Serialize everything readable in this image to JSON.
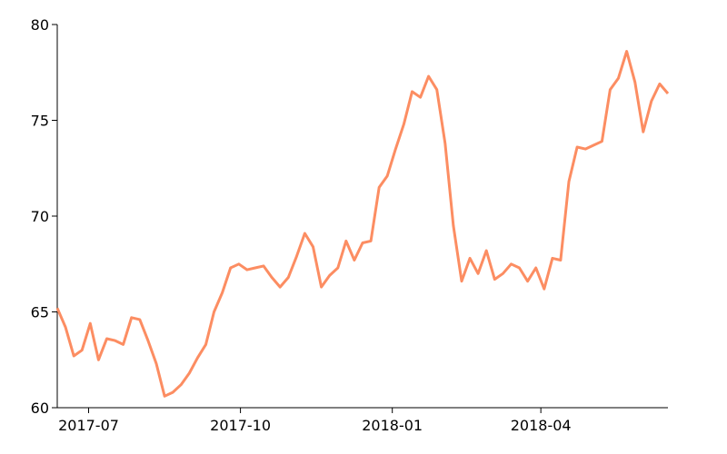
{
  "chart_data": {
    "type": "line",
    "x": [
      "2017-06-12",
      "2017-06-17",
      "2017-06-22",
      "2017-06-27",
      "2017-07-02",
      "2017-07-07",
      "2017-07-12",
      "2017-07-17",
      "2017-07-22",
      "2017-07-27",
      "2017-08-01",
      "2017-08-06",
      "2017-08-11",
      "2017-08-16",
      "2017-08-21",
      "2017-08-26",
      "2017-08-31",
      "2017-09-05",
      "2017-09-10",
      "2017-09-15",
      "2017-09-20",
      "2017-09-25",
      "2017-09-30",
      "2017-10-05",
      "2017-10-10",
      "2017-10-15",
      "2017-10-20",
      "2017-10-25",
      "2017-10-30",
      "2017-11-04",
      "2017-11-09",
      "2017-11-14",
      "2017-11-19",
      "2017-11-24",
      "2017-11-29",
      "2017-12-04",
      "2017-12-09",
      "2017-12-14",
      "2017-12-19",
      "2017-12-24",
      "2017-12-29",
      "2018-01-03",
      "2018-01-08",
      "2018-01-13",
      "2018-01-18",
      "2018-01-23",
      "2018-01-28",
      "2018-02-02",
      "2018-02-07",
      "2018-02-12",
      "2018-02-17",
      "2018-02-22",
      "2018-02-27",
      "2018-03-04",
      "2018-03-09",
      "2018-03-14",
      "2018-03-19",
      "2018-03-24",
      "2018-03-29",
      "2018-04-03",
      "2018-04-08",
      "2018-04-13",
      "2018-04-18",
      "2018-04-23",
      "2018-04-28",
      "2018-05-03",
      "2018-05-08",
      "2018-05-13",
      "2018-05-18",
      "2018-05-23",
      "2018-05-28",
      "2018-06-02",
      "2018-06-07",
      "2018-06-12",
      "2018-06-17"
    ],
    "series": [
      {
        "name": "value",
        "color": "#fc8d62",
        "values": [
          65.2,
          64.2,
          62.7,
          63.0,
          64.4,
          62.5,
          63.6,
          63.5,
          63.3,
          64.7,
          64.6,
          63.5,
          62.3,
          60.6,
          60.8,
          61.2,
          61.8,
          62.6,
          63.3,
          65.0,
          66.0,
          67.3,
          67.5,
          67.2,
          67.3,
          67.4,
          66.8,
          66.3,
          66.8,
          67.9,
          69.1,
          68.4,
          66.3,
          66.9,
          67.3,
          68.7,
          67.7,
          68.6,
          68.7,
          71.5,
          72.1,
          73.5,
          74.8,
          76.5,
          76.2,
          77.3,
          76.6,
          73.8,
          69.5,
          66.6,
          67.8,
          67.0,
          68.2,
          66.7,
          67.0,
          67.5,
          67.3,
          66.6,
          67.3,
          66.2,
          67.8,
          67.7,
          71.8,
          73.6,
          73.5,
          73.7,
          73.9,
          76.6,
          77.2,
          78.6,
          77.0,
          74.4,
          76.0,
          76.9,
          76.4
        ]
      }
    ],
    "xlim": [
      "2017-06-12",
      "2018-06-17"
    ],
    "xticks": [
      "2017-07",
      "2017-10",
      "2018-01",
      "2018-04"
    ],
    "ylim": [
      60,
      80
    ],
    "yticks": [
      60,
      65,
      70,
      75,
      80
    ]
  }
}
